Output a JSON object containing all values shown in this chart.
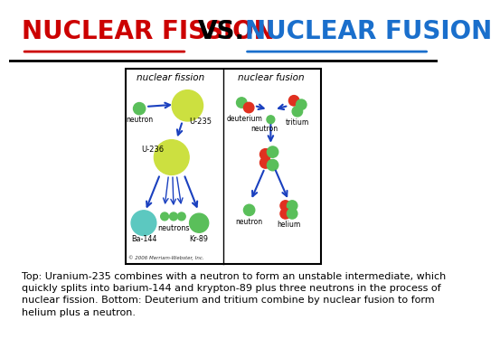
{
  "title_left": "NUCLEAR FISSION",
  "title_vs": "VS.",
  "title_right": "NUCLEAR FUSION",
  "title_left_color": "#cc0000",
  "title_right_color": "#1a6fcc",
  "title_vs_color": "#000000",
  "title_fontsize": 20,
  "bg_color": "#ffffff",
  "caption": "Top: Uranium-235 combines with a neutron to form an unstable intermediate, which\nquickly splits into barium-144 and krypton-89 plus three neutrons in the process of\nnuclear fission. Bottom: Deuterium and tritium combine by nuclear fusion to form\nhelium plus a neutron.",
  "caption_fontsize": 8.0,
  "fission_label": "nuclear fission",
  "fusion_label": "nuclear fusion",
  "copyright": "© 2006 Merriam-Webster, Inc.",
  "green_color": "#5abf5a",
  "yellow_color": "#cce040",
  "teal_color": "#5cc8c0",
  "red_color": "#e03020",
  "arrow_color": "#1a40bf"
}
